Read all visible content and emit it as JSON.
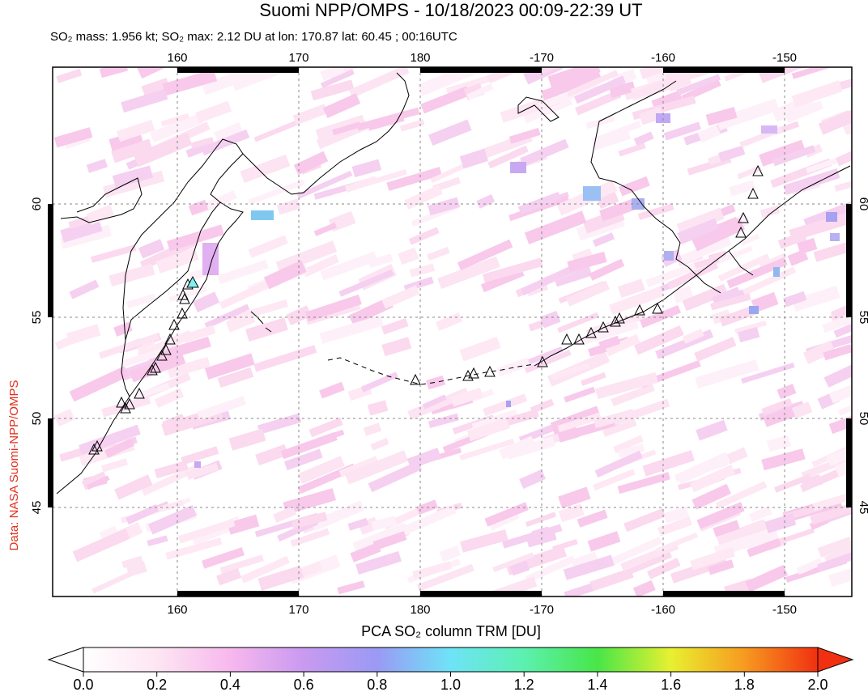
{
  "header": {
    "title": "Suomi NPP/OMPS - 10/18/2023 00:09-22:39 UT",
    "subtitle": "SO₂ mass: 1.956 kt; SO₂ max: 2.12 DU at lon: 170.87 lat: 60.45 ; 00:16UTC"
  },
  "map": {
    "lon_labels": [
      "160",
      "170",
      "180",
      "-170",
      "-160",
      "-150"
    ],
    "lat_labels": [
      "60",
      "55",
      "50",
      "45"
    ],
    "side_label": "Data: NASA Suomi-NPP/OMPS"
  },
  "colorbar": {
    "label": "PCA SO₂ column TRM [DU]",
    "range": [
      0,
      2
    ],
    "ticks": [
      {
        "value": 0,
        "label": "0.0"
      },
      {
        "value": 0.2,
        "label": "0.2"
      },
      {
        "value": 0.4,
        "label": "0.4"
      },
      {
        "value": 0.6,
        "label": "0.6"
      },
      {
        "value": 0.8,
        "label": "0.8"
      },
      {
        "value": 1,
        "label": "1.0"
      },
      {
        "value": 1.2,
        "label": "1.2"
      },
      {
        "value": 1.4,
        "label": "1.4"
      },
      {
        "value": 1.6,
        "label": "1.6"
      },
      {
        "value": 1.8,
        "label": "1.8"
      },
      {
        "value": 2,
        "label": "2.0"
      }
    ]
  }
}
